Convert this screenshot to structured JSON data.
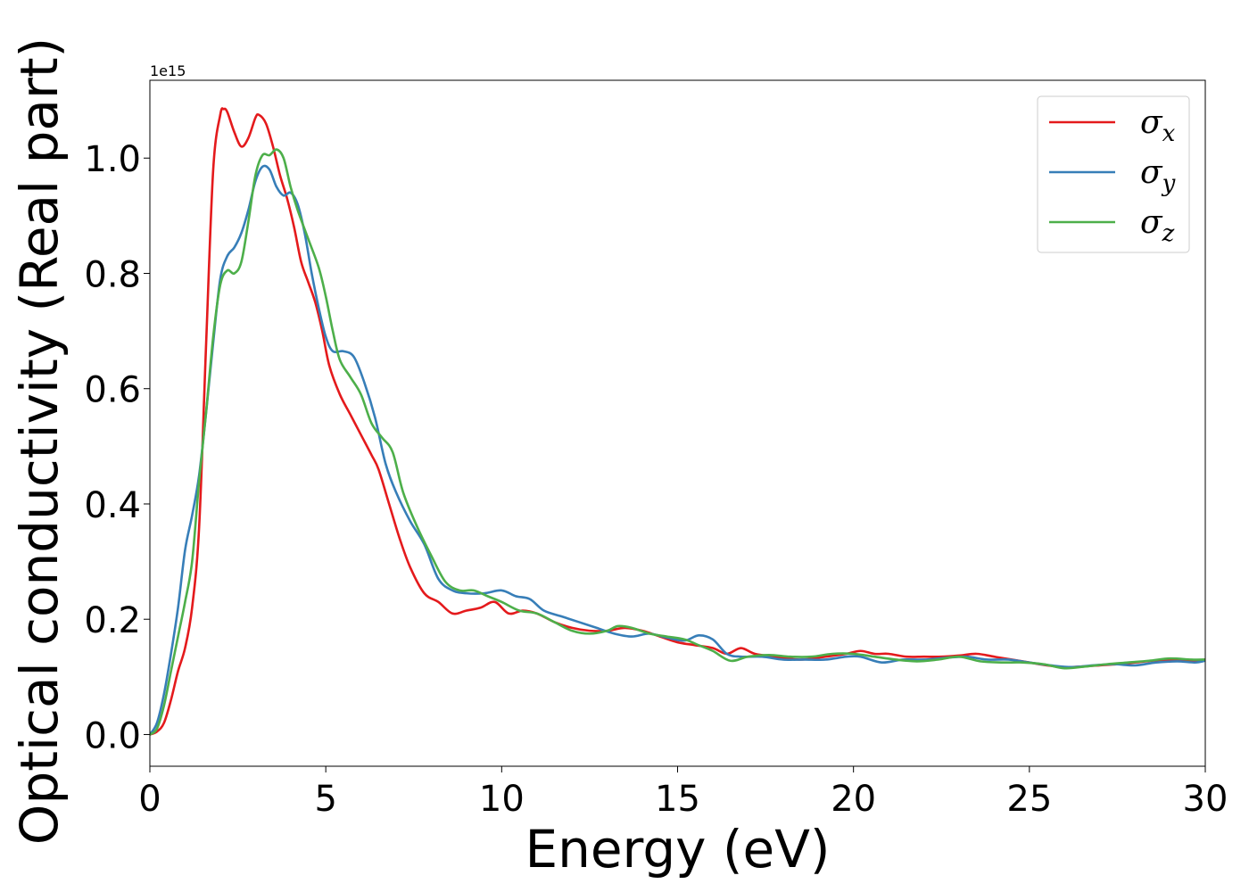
{
  "chart_data": {
    "type": "line",
    "xlabel": "Energy (eV)",
    "ylabel": "Optical conductivity (Real part)",
    "y_offset_label": "1e15",
    "xlim": [
      0,
      30
    ],
    "ylim": [
      -0.055,
      1.135
    ],
    "x_ticks": [
      0,
      5,
      10,
      15,
      20,
      25,
      30
    ],
    "x_tick_labels": [
      "0",
      "5",
      "10",
      "15",
      "20",
      "25",
      "30"
    ],
    "y_ticks": [
      0.0,
      0.2,
      0.4,
      0.6,
      0.8,
      1.0
    ],
    "y_tick_labels": [
      "0.0",
      "0.2",
      "0.4",
      "0.6",
      "0.8",
      "1.0"
    ],
    "grid": false,
    "legend_position": "top-right",
    "series": [
      {
        "name": "σx",
        "symbol": "σ",
        "subscript": "x",
        "color": "#e41a1c",
        "points": [
          [
            0,
            0
          ],
          [
            0.2,
            0.005
          ],
          [
            0.4,
            0.02
          ],
          [
            0.6,
            0.06
          ],
          [
            0.8,
            0.11
          ],
          [
            1.0,
            0.15
          ],
          [
            1.2,
            0.22
          ],
          [
            1.4,
            0.36
          ],
          [
            1.6,
            0.68
          ],
          [
            1.8,
            0.98
          ],
          [
            2.0,
            1.075
          ],
          [
            2.1,
            1.085
          ],
          [
            2.2,
            1.08
          ],
          [
            2.4,
            1.045
          ],
          [
            2.6,
            1.02
          ],
          [
            2.8,
            1.035
          ],
          [
            3.0,
            1.07
          ],
          [
            3.1,
            1.075
          ],
          [
            3.3,
            1.06
          ],
          [
            3.5,
            1.02
          ],
          [
            3.7,
            0.97
          ],
          [
            3.9,
            0.93
          ],
          [
            4.1,
            0.88
          ],
          [
            4.3,
            0.82
          ],
          [
            4.5,
            0.785
          ],
          [
            4.7,
            0.75
          ],
          [
            4.9,
            0.7
          ],
          [
            5.1,
            0.64
          ],
          [
            5.4,
            0.59
          ],
          [
            5.7,
            0.555
          ],
          [
            6.0,
            0.52
          ],
          [
            6.3,
            0.485
          ],
          [
            6.5,
            0.46
          ],
          [
            6.8,
            0.4
          ],
          [
            7.1,
            0.34
          ],
          [
            7.4,
            0.29
          ],
          [
            7.8,
            0.245
          ],
          [
            8.2,
            0.23
          ],
          [
            8.6,
            0.21
          ],
          [
            9.0,
            0.215
          ],
          [
            9.4,
            0.22
          ],
          [
            9.8,
            0.23
          ],
          [
            10.2,
            0.21
          ],
          [
            10.6,
            0.215
          ],
          [
            11.0,
            0.21
          ],
          [
            11.5,
            0.195
          ],
          [
            12.0,
            0.185
          ],
          [
            12.5,
            0.18
          ],
          [
            13.0,
            0.18
          ],
          [
            13.5,
            0.185
          ],
          [
            14.0,
            0.18
          ],
          [
            14.5,
            0.17
          ],
          [
            15.0,
            0.16
          ],
          [
            15.5,
            0.155
          ],
          [
            16.0,
            0.15
          ],
          [
            16.4,
            0.14
          ],
          [
            16.8,
            0.15
          ],
          [
            17.2,
            0.14
          ],
          [
            17.8,
            0.135
          ],
          [
            18.5,
            0.13
          ],
          [
            19.2,
            0.135
          ],
          [
            19.8,
            0.14
          ],
          [
            20.2,
            0.145
          ],
          [
            20.6,
            0.14
          ],
          [
            21.0,
            0.14
          ],
          [
            21.5,
            0.135
          ],
          [
            22.0,
            0.135
          ],
          [
            22.5,
            0.135
          ],
          [
            23.0,
            0.137
          ],
          [
            23.5,
            0.14
          ],
          [
            24.0,
            0.135
          ],
          [
            24.5,
            0.13
          ],
          [
            25.0,
            0.125
          ],
          [
            25.5,
            0.12
          ],
          [
            26.0,
            0.117
          ],
          [
            26.5,
            0.118
          ],
          [
            27.0,
            0.12
          ],
          [
            27.5,
            0.122
          ],
          [
            28.0,
            0.125
          ],
          [
            28.5,
            0.128
          ],
          [
            29.0,
            0.13
          ],
          [
            29.5,
            0.128
          ],
          [
            30.0,
            0.13
          ]
        ]
      },
      {
        "name": "σy",
        "symbol": "σ",
        "subscript": "y",
        "color": "#377eb8",
        "points": [
          [
            0,
            0
          ],
          [
            0.2,
            0.02
          ],
          [
            0.4,
            0.07
          ],
          [
            0.6,
            0.14
          ],
          [
            0.8,
            0.22
          ],
          [
            1.0,
            0.32
          ],
          [
            1.2,
            0.38
          ],
          [
            1.4,
            0.45
          ],
          [
            1.6,
            0.56
          ],
          [
            1.8,
            0.68
          ],
          [
            2.0,
            0.79
          ],
          [
            2.2,
            0.83
          ],
          [
            2.4,
            0.845
          ],
          [
            2.6,
            0.87
          ],
          [
            2.8,
            0.91
          ],
          [
            3.0,
            0.96
          ],
          [
            3.2,
            0.985
          ],
          [
            3.4,
            0.98
          ],
          [
            3.6,
            0.95
          ],
          [
            3.8,
            0.935
          ],
          [
            4.0,
            0.94
          ],
          [
            4.2,
            0.92
          ],
          [
            4.4,
            0.87
          ],
          [
            4.6,
            0.8
          ],
          [
            4.8,
            0.74
          ],
          [
            5.0,
            0.69
          ],
          [
            5.2,
            0.665
          ],
          [
            5.5,
            0.665
          ],
          [
            5.8,
            0.655
          ],
          [
            6.1,
            0.61
          ],
          [
            6.4,
            0.55
          ],
          [
            6.7,
            0.47
          ],
          [
            7.0,
            0.42
          ],
          [
            7.4,
            0.37
          ],
          [
            7.8,
            0.33
          ],
          [
            8.2,
            0.27
          ],
          [
            8.6,
            0.25
          ],
          [
            9.0,
            0.245
          ],
          [
            9.5,
            0.245
          ],
          [
            10.0,
            0.25
          ],
          [
            10.4,
            0.24
          ],
          [
            10.8,
            0.235
          ],
          [
            11.2,
            0.215
          ],
          [
            11.7,
            0.205
          ],
          [
            12.2,
            0.195
          ],
          [
            12.7,
            0.185
          ],
          [
            13.2,
            0.175
          ],
          [
            13.7,
            0.17
          ],
          [
            14.2,
            0.175
          ],
          [
            14.7,
            0.168
          ],
          [
            15.2,
            0.163
          ],
          [
            15.6,
            0.172
          ],
          [
            16.0,
            0.165
          ],
          [
            16.4,
            0.14
          ],
          [
            16.8,
            0.135
          ],
          [
            17.4,
            0.135
          ],
          [
            18.0,
            0.13
          ],
          [
            18.6,
            0.13
          ],
          [
            19.2,
            0.13
          ],
          [
            19.8,
            0.135
          ],
          [
            20.2,
            0.135
          ],
          [
            20.8,
            0.125
          ],
          [
            21.4,
            0.13
          ],
          [
            22.0,
            0.13
          ],
          [
            22.6,
            0.133
          ],
          [
            23.2,
            0.135
          ],
          [
            23.8,
            0.13
          ],
          [
            24.4,
            0.13
          ],
          [
            25.0,
            0.125
          ],
          [
            25.6,
            0.12
          ],
          [
            26.2,
            0.117
          ],
          [
            26.8,
            0.12
          ],
          [
            27.4,
            0.122
          ],
          [
            28.0,
            0.12
          ],
          [
            28.6,
            0.125
          ],
          [
            29.2,
            0.127
          ],
          [
            29.7,
            0.125
          ],
          [
            30.0,
            0.128
          ]
        ]
      },
      {
        "name": "σz",
        "symbol": "σ",
        "subscript": "z",
        "color": "#4daf4a",
        "points": [
          [
            0,
            0
          ],
          [
            0.2,
            0.01
          ],
          [
            0.4,
            0.05
          ],
          [
            0.6,
            0.11
          ],
          [
            0.8,
            0.17
          ],
          [
            1.0,
            0.23
          ],
          [
            1.2,
            0.3
          ],
          [
            1.4,
            0.44
          ],
          [
            1.6,
            0.56
          ],
          [
            1.8,
            0.69
          ],
          [
            2.0,
            0.78
          ],
          [
            2.2,
            0.805
          ],
          [
            2.4,
            0.8
          ],
          [
            2.6,
            0.82
          ],
          [
            2.8,
            0.89
          ],
          [
            3.0,
            0.97
          ],
          [
            3.2,
            1.005
          ],
          [
            3.4,
            1.005
          ],
          [
            3.6,
            1.015
          ],
          [
            3.8,
            1.0
          ],
          [
            4.0,
            0.95
          ],
          [
            4.2,
            0.91
          ],
          [
            4.5,
            0.86
          ],
          [
            4.8,
            0.81
          ],
          [
            5.0,
            0.76
          ],
          [
            5.2,
            0.7
          ],
          [
            5.4,
            0.65
          ],
          [
            5.7,
            0.62
          ],
          [
            6.0,
            0.59
          ],
          [
            6.3,
            0.54
          ],
          [
            6.6,
            0.515
          ],
          [
            6.9,
            0.49
          ],
          [
            7.2,
            0.42
          ],
          [
            7.6,
            0.36
          ],
          [
            8.0,
            0.31
          ],
          [
            8.4,
            0.265
          ],
          [
            8.8,
            0.25
          ],
          [
            9.2,
            0.25
          ],
          [
            9.6,
            0.24
          ],
          [
            10.0,
            0.23
          ],
          [
            10.5,
            0.215
          ],
          [
            11.0,
            0.21
          ],
          [
            11.5,
            0.195
          ],
          [
            12.0,
            0.18
          ],
          [
            12.5,
            0.175
          ],
          [
            13.0,
            0.18
          ],
          [
            13.3,
            0.188
          ],
          [
            13.7,
            0.185
          ],
          [
            14.2,
            0.175
          ],
          [
            14.7,
            0.17
          ],
          [
            15.2,
            0.165
          ],
          [
            15.6,
            0.155
          ],
          [
            16.0,
            0.145
          ],
          [
            16.5,
            0.128
          ],
          [
            17.0,
            0.135
          ],
          [
            17.6,
            0.138
          ],
          [
            18.2,
            0.135
          ],
          [
            18.8,
            0.135
          ],
          [
            19.4,
            0.14
          ],
          [
            20.0,
            0.14
          ],
          [
            20.6,
            0.135
          ],
          [
            21.2,
            0.13
          ],
          [
            21.8,
            0.127
          ],
          [
            22.4,
            0.13
          ],
          [
            23.0,
            0.135
          ],
          [
            23.6,
            0.127
          ],
          [
            24.2,
            0.125
          ],
          [
            24.8,
            0.125
          ],
          [
            25.4,
            0.122
          ],
          [
            26.0,
            0.115
          ],
          [
            26.6,
            0.118
          ],
          [
            27.2,
            0.122
          ],
          [
            27.8,
            0.125
          ],
          [
            28.4,
            0.128
          ],
          [
            29.0,
            0.132
          ],
          [
            29.6,
            0.13
          ],
          [
            30.0,
            0.13
          ]
        ]
      }
    ]
  }
}
